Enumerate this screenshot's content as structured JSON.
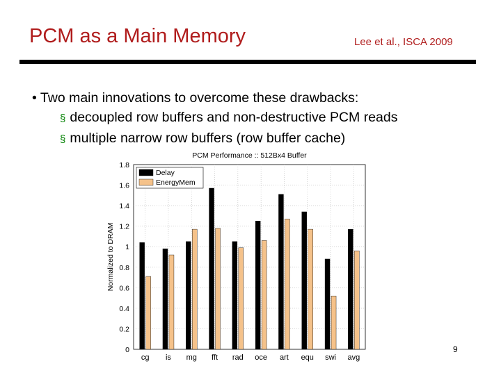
{
  "slide": {
    "title": "PCM as a Main Memory",
    "citation": "Lee et al., ISCA 2009",
    "bullet_main": "Two main innovations to overcome these drawbacks:",
    "sub_bullets": [
      "decoupled row buffers and non-destructive PCM reads",
      "multiple narrow row buffers (row buffer cache)"
    ],
    "page_number": "9",
    "colors": {
      "title": "#b01c1c",
      "sub_bullet_mark": "#008000"
    }
  },
  "chart_data": {
    "type": "bar",
    "title": "PCM Performance :: 512Bx4 Buffer",
    "xlabel": "",
    "ylabel": "Normalized to DRAM",
    "categories": [
      "cg",
      "is",
      "mg",
      "fft",
      "rad",
      "oce",
      "art",
      "equ",
      "swi",
      "avg"
    ],
    "series": [
      {
        "name": "Delay",
        "color": "#000000",
        "values": [
          1.04,
          0.98,
          1.05,
          1.57,
          1.05,
          1.25,
          1.51,
          1.34,
          0.88,
          1.17
        ]
      },
      {
        "name": "EnergyMem",
        "color": "#f5c28a",
        "values": [
          0.71,
          0.92,
          1.17,
          1.18,
          0.99,
          1.06,
          1.27,
          1.17,
          0.52,
          0.96
        ]
      }
    ],
    "ylim": [
      0,
      1.8
    ],
    "yticks": [
      0,
      0.2,
      0.4,
      0.6,
      0.8,
      1,
      1.2,
      1.4,
      1.6,
      1.8
    ],
    "grid": true,
    "legend_position": "top-left"
  }
}
